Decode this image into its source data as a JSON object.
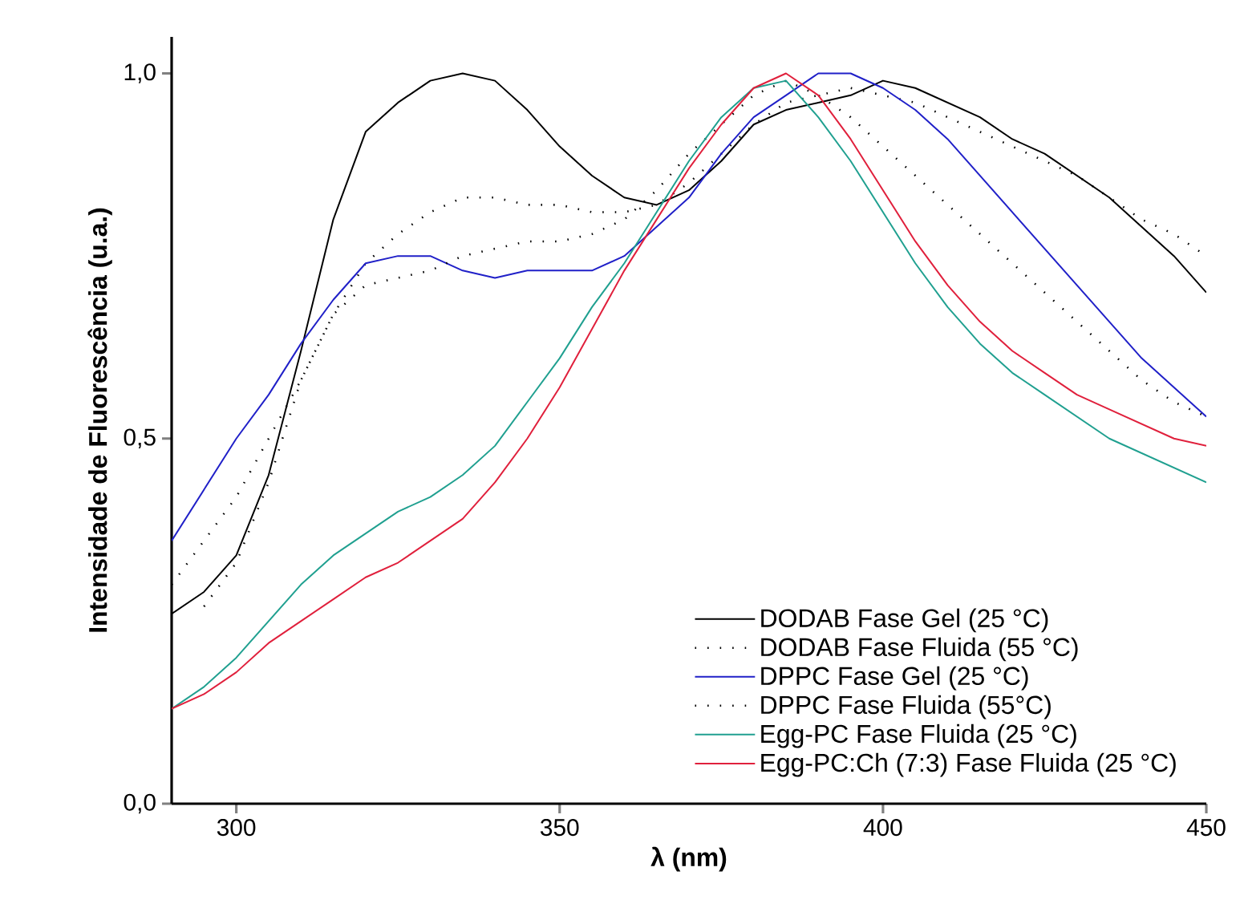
{
  "chart_data": {
    "type": "line",
    "xlabel": "λ (nm)",
    "ylabel": "Intensidade de Fluorescência (u.a.)",
    "x": [
      290,
      295,
      300,
      305,
      310,
      315,
      320,
      325,
      330,
      335,
      340,
      345,
      350,
      355,
      360,
      365,
      370,
      375,
      380,
      385,
      390,
      395,
      400,
      405,
      410,
      415,
      420,
      425,
      430,
      435,
      440,
      445,
      450
    ],
    "xlim": [
      290,
      450
    ],
    "xticks": [
      300,
      350,
      400,
      450
    ],
    "ylim": [
      0,
      1.05
    ],
    "yticks": [
      {
        "value": 0,
        "label": "0,0"
      },
      {
        "value": 0.5,
        "label": "0,5"
      },
      {
        "value": 1,
        "label": "1,0"
      }
    ],
    "legend": "bottom right",
    "grid": false,
    "series": [
      {
        "name": "DODAB Fase Gel (25 °C)",
        "color": "#000000",
        "line_style": "solid",
        "values": [
          0.26,
          0.29,
          0.34,
          0.45,
          0.62,
          0.8,
          0.92,
          0.96,
          0.99,
          1.0,
          0.99,
          0.95,
          0.9,
          0.86,
          0.83,
          0.82,
          0.84,
          0.88,
          0.93,
          0.95,
          0.96,
          0.97,
          0.99,
          0.98,
          0.96,
          0.94,
          0.91,
          0.89,
          0.86,
          0.83,
          0.79,
          0.75,
          0.7
        ]
      },
      {
        "name": "DODAB Fase Fluida (55 °C)",
        "color": "#000000",
        "line_style": "dotted",
        "values": [
          0.3,
          0.36,
          0.42,
          0.5,
          0.58,
          0.67,
          0.74,
          0.78,
          0.81,
          0.83,
          0.83,
          0.82,
          0.82,
          0.81,
          0.81,
          0.82,
          0.85,
          0.89,
          0.93,
          0.96,
          0.97,
          0.98,
          0.97,
          0.96,
          0.94,
          0.92,
          0.9,
          0.88,
          0.86,
          0.83,
          0.8,
          0.78,
          0.75
        ]
      },
      {
        "name": "DPPC Fase Gel (25 °C)",
        "color": "#2020c8",
        "line_style": "solid",
        "values": [
          0.36,
          0.43,
          0.5,
          0.56,
          0.63,
          0.69,
          0.74,
          0.75,
          0.75,
          0.73,
          0.72,
          0.73,
          0.73,
          0.73,
          0.75,
          0.79,
          0.83,
          0.89,
          0.94,
          0.97,
          1.0,
          1.0,
          0.98,
          0.95,
          0.91,
          0.86,
          0.81,
          0.76,
          0.71,
          0.66,
          0.61,
          0.57,
          0.53
        ]
      },
      {
        "name": "DPPC Fase Fluida (55°C)",
        "color": "#000000",
        "line_style": "dotted",
        "x": [
          295,
          300,
          305,
          310,
          315,
          320,
          325,
          330,
          335,
          340,
          345,
          350,
          355,
          360,
          365,
          370,
          375,
          380,
          385,
          390,
          395,
          400,
          405,
          410,
          415,
          420,
          425,
          430,
          435,
          440,
          445,
          450
        ],
        "values": [
          0.27,
          0.33,
          0.44,
          0.58,
          0.67,
          0.71,
          0.72,
          0.73,
          0.75,
          0.76,
          0.77,
          0.77,
          0.78,
          0.8,
          0.84,
          0.89,
          0.93,
          0.97,
          0.99,
          0.97,
          0.94,
          0.9,
          0.86,
          0.82,
          0.78,
          0.74,
          0.7,
          0.66,
          0.62,
          0.58,
          0.55,
          0.53
        ]
      },
      {
        "name": "Egg-PC Fase Fluida (25 °C)",
        "color": "#20a090",
        "line_style": "solid",
        "values": [
          0.13,
          0.16,
          0.2,
          0.25,
          0.3,
          0.34,
          0.37,
          0.4,
          0.42,
          0.45,
          0.49,
          0.55,
          0.61,
          0.68,
          0.74,
          0.81,
          0.88,
          0.94,
          0.98,
          0.99,
          0.94,
          0.88,
          0.81,
          0.74,
          0.68,
          0.63,
          0.59,
          0.56,
          0.53,
          0.5,
          0.48,
          0.46,
          0.44
        ]
      },
      {
        "name": "Egg-PC:Ch (7:3) Fase Fluida (25 °C)",
        "color": "#e0203c",
        "line_style": "solid",
        "values": [
          0.13,
          0.15,
          0.18,
          0.22,
          0.25,
          0.28,
          0.31,
          0.33,
          0.36,
          0.39,
          0.44,
          0.5,
          0.57,
          0.65,
          0.73,
          0.8,
          0.87,
          0.93,
          0.98,
          1.0,
          0.97,
          0.91,
          0.84,
          0.77,
          0.71,
          0.66,
          0.62,
          0.59,
          0.56,
          0.54,
          0.52,
          0.5,
          0.49
        ]
      }
    ]
  }
}
